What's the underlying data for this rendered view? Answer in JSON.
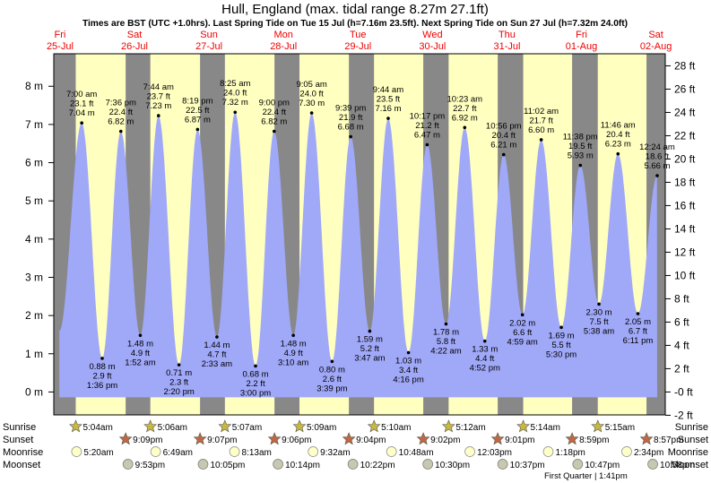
{
  "chart_data": {
    "type": "area",
    "title": "Hull, England (max. tidal range 8.27m 27.1ft)",
    "subtitle": "Times are BST (UTC +1.0hrs). Last Spring Tide on Tue 15 Jul (h=7.16m 23.5ft). Next Spring Tide on Sun 27 Jul (h=7.32m 24.0ft)",
    "y_left": {
      "unit": "m",
      "range": [
        -0.6,
        8.85
      ],
      "ticks": [
        0,
        1,
        2,
        3,
        4,
        5,
        6,
        7,
        8
      ],
      "labels": [
        "0 m",
        "1 m",
        "2 m",
        "3 m",
        "4 m",
        "5 m",
        "6 m",
        "7 m",
        "8 m"
      ]
    },
    "y_right": {
      "unit": "ft",
      "ticks": [
        -2,
        0,
        2,
        4,
        6,
        8,
        10,
        12,
        14,
        16,
        18,
        20,
        22,
        24,
        26,
        28
      ],
      "labels": [
        "-2 ft",
        "-0 ft",
        "2 ft",
        "4 ft",
        "6 ft",
        "8 ft",
        "10 ft",
        "12 ft",
        "14 ft",
        "16 ft",
        "18 ft",
        "20 ft",
        "22 ft",
        "24 ft",
        "26 ft",
        "28 ft"
      ]
    },
    "days": [
      {
        "dow": "Fri",
        "date": "25-Jul",
        "start": 0.0
      },
      {
        "dow": "Sat",
        "date": "26-Jul",
        "start": 24.0
      },
      {
        "dow": "Sun",
        "date": "27-Jul",
        "start": 48.0
      },
      {
        "dow": "Mon",
        "date": "28-Jul",
        "start": 72.0
      },
      {
        "dow": "Tue",
        "date": "29-Jul",
        "start": 96.0
      },
      {
        "dow": "Wed",
        "date": "30-Jul",
        "start": 120.0
      },
      {
        "dow": "Thu",
        "date": "31-Jul",
        "start": 144.0
      },
      {
        "dow": "Fri",
        "date": "01-Aug",
        "start": 168.0
      },
      {
        "dow": "Sat",
        "date": "02-Aug",
        "start": 192.0
      }
    ],
    "x_range_hours": [
      -2.0,
      195.0
    ],
    "nights": [
      [
        -2.0,
        5.07
      ],
      [
        21.15,
        29.1
      ],
      [
        45.12,
        53.12
      ],
      [
        69.1,
        77.15
      ],
      [
        93.07,
        101.17
      ],
      [
        117.03,
        125.2
      ],
      [
        141.02,
        149.23
      ],
      [
        164.98,
        173.25
      ],
      [
        188.95,
        195.0
      ]
    ],
    "tides": [
      {
        "t": 7.0,
        "h": 7.04,
        "type": "high",
        "time": "7:00 am",
        "ft": "23.1 ft",
        "m": "7.04 m"
      },
      {
        "t": 13.6,
        "h": 0.88,
        "type": "low",
        "time": "1:36 pm",
        "ft": "2.9 ft",
        "m": "0.88 m"
      },
      {
        "t": 19.6,
        "h": 6.82,
        "type": "high",
        "time": "7:36 pm",
        "ft": "22.4 ft",
        "m": "6.82 m"
      },
      {
        "t": 25.867,
        "h": 1.48,
        "type": "low",
        "time": "1:52 am",
        "ft": "4.9 ft",
        "m": "1.48 m"
      },
      {
        "t": 31.733,
        "h": 7.23,
        "type": "high",
        "time": "7:44 am",
        "ft": "23.7 ft",
        "m": "7.23 m"
      },
      {
        "t": 38.333,
        "h": 0.71,
        "type": "low",
        "time": "2:20 pm",
        "ft": "2.3 ft",
        "m": "0.71 m"
      },
      {
        "t": 44.317,
        "h": 6.87,
        "type": "high",
        "time": "8:19 pm",
        "ft": "22.5 ft",
        "m": "6.87 m"
      },
      {
        "t": 50.55,
        "h": 1.44,
        "type": "low",
        "time": "2:33 am",
        "ft": "4.7 ft",
        "m": "1.44 m"
      },
      {
        "t": 56.417,
        "h": 7.32,
        "type": "high",
        "time": "8:25 am",
        "ft": "24.0 ft",
        "m": "7.32 m"
      },
      {
        "t": 63.0,
        "h": 0.68,
        "type": "low",
        "time": "3:00 pm",
        "ft": "2.2 ft",
        "m": "0.68 m"
      },
      {
        "t": 69.0,
        "h": 6.82,
        "type": "high",
        "time": "9:00 pm",
        "ft": "22.4 ft",
        "m": "6.82 m"
      },
      {
        "t": 75.167,
        "h": 1.48,
        "type": "low",
        "time": "3:10 am",
        "ft": "4.9 ft",
        "m": "1.48 m"
      },
      {
        "t": 81.083,
        "h": 7.3,
        "type": "high",
        "time": "9:05 am",
        "ft": "24.0 ft",
        "m": "7.30 m"
      },
      {
        "t": 87.65,
        "h": 0.8,
        "type": "low",
        "time": "3:39 pm",
        "ft": "2.6 ft",
        "m": "0.80 m"
      },
      {
        "t": 93.65,
        "h": 6.68,
        "type": "high",
        "time": "9:39 pm",
        "ft": "21.9 ft",
        "m": "6.68 m"
      },
      {
        "t": 99.783,
        "h": 1.59,
        "type": "low",
        "time": "3:47 am",
        "ft": "5.2 ft",
        "m": "1.59 m"
      },
      {
        "t": 105.733,
        "h": 7.16,
        "type": "high",
        "time": "9:44 am",
        "ft": "23.5 ft",
        "m": "7.16 m"
      },
      {
        "t": 112.267,
        "h": 1.03,
        "type": "low",
        "time": "4:16 pm",
        "ft": "3.4 ft",
        "m": "1.03 m"
      },
      {
        "t": 118.283,
        "h": 6.47,
        "type": "high",
        "time": "10:17 pm",
        "ft": "21.2 ft",
        "m": "6.47 m"
      },
      {
        "t": 124.367,
        "h": 1.78,
        "type": "low",
        "time": "4:22 am",
        "ft": "5.8 ft",
        "m": "1.78 m"
      },
      {
        "t": 130.383,
        "h": 6.92,
        "type": "high",
        "time": "10:23 am",
        "ft": "22.7 ft",
        "m": "6.92 m"
      },
      {
        "t": 136.867,
        "h": 1.33,
        "type": "low",
        "time": "4:52 pm",
        "ft": "4.4 ft",
        "m": "1.33 m"
      },
      {
        "t": 142.933,
        "h": 6.21,
        "type": "high",
        "time": "10:56 pm",
        "ft": "20.4 ft",
        "m": "6.21 m"
      },
      {
        "t": 148.983,
        "h": 2.02,
        "type": "low",
        "time": "4:59 am",
        "ft": "6.6 ft",
        "m": "2.02 m"
      },
      {
        "t": 155.033,
        "h": 6.6,
        "type": "high",
        "time": "11:02 am",
        "ft": "21.7 ft",
        "m": "6.60 m"
      },
      {
        "t": 161.5,
        "h": 1.69,
        "type": "low",
        "time": "5:30 pm",
        "ft": "5.5 ft",
        "m": "1.69 m"
      },
      {
        "t": 167.633,
        "h": 5.93,
        "type": "high",
        "time": "11:38 pm",
        "ft": "19.5 ft",
        "m": "5.93 m"
      },
      {
        "t": 173.633,
        "h": 2.3,
        "type": "low",
        "time": "5:38 am",
        "ft": "7.5 ft",
        "m": "2.30 m"
      },
      {
        "t": 179.767,
        "h": 6.23,
        "type": "high",
        "time": "11:46 am",
        "ft": "20.4 ft",
        "m": "6.23 m"
      },
      {
        "t": 186.183,
        "h": 2.05,
        "type": "low",
        "time": "6:11 pm",
        "ft": "6.7 ft",
        "m": "2.05 m"
      },
      {
        "t": 192.4,
        "h": 5.66,
        "type": "high",
        "time": "12:24 am",
        "ft": "18.6 ft",
        "m": "5.66 m"
      }
    ],
    "curve_range_hours": [
      -0.2,
      192.4
    ],
    "curve_start_height": 1.6,
    "colors": {
      "night": "#888888",
      "day": "#ffffc0",
      "water": "#a0a8f8",
      "day_label": "#ee0000",
      "sun": "#c8b840",
      "sunset": "#c06840",
      "moon": "#ffffc8",
      "moonset": "#c8c8b0"
    },
    "rows": {
      "labels": [
        "Sunrise",
        "Sunset",
        "Moonrise",
        "Moonset"
      ],
      "sunrise": [
        {
          "t": 5.067,
          "time": "5:04am"
        },
        {
          "t": 29.1,
          "time": "5:06am"
        },
        {
          "t": 53.117,
          "time": "5:07am"
        },
        {
          "t": 77.15,
          "time": "5:09am"
        },
        {
          "t": 101.167,
          "time": "5:10am"
        },
        {
          "t": 125.2,
          "time": "5:12am"
        },
        {
          "t": 149.233,
          "time": "5:14am"
        },
        {
          "t": 173.25,
          "time": "5:15am"
        }
      ],
      "sunset": [
        {
          "t": 21.15,
          "time": "9:09pm"
        },
        {
          "t": 45.117,
          "time": "9:07pm"
        },
        {
          "t": 69.1,
          "time": "9:06pm"
        },
        {
          "t": 93.067,
          "time": "9:04pm"
        },
        {
          "t": 117.033,
          "time": "9:02pm"
        },
        {
          "t": 141.017,
          "time": "9:01pm"
        },
        {
          "t": 164.983,
          "time": "8:59pm"
        },
        {
          "t": 188.95,
          "time": "8:57pm"
        }
      ],
      "moonrise": [
        {
          "t": 5.333,
          "time": "5:20am"
        },
        {
          "t": 30.817,
          "time": "6:49am"
        },
        {
          "t": 56.217,
          "time": "8:13am"
        },
        {
          "t": 81.533,
          "time": "9:32am"
        },
        {
          "t": 106.8,
          "time": "10:48am"
        },
        {
          "t": 132.05,
          "time": "12:03pm"
        },
        {
          "t": 157.3,
          "time": "1:18pm"
        },
        {
          "t": 182.567,
          "time": "2:34pm"
        }
      ],
      "moonset": [
        {
          "t": 21.883,
          "time": "9:53pm"
        },
        {
          "t": 46.083,
          "time": "10:05pm"
        },
        {
          "t": 70.233,
          "time": "10:14pm"
        },
        {
          "t": 94.367,
          "time": "10:22pm"
        },
        {
          "t": 118.5,
          "time": "10:30pm"
        },
        {
          "t": 142.617,
          "time": "10:37pm"
        },
        {
          "t": 166.783,
          "time": "10:47pm"
        },
        {
          "t": 190.967,
          "time": "10:58pm"
        }
      ],
      "phase_note": "First Quarter | 1:41pm"
    }
  }
}
